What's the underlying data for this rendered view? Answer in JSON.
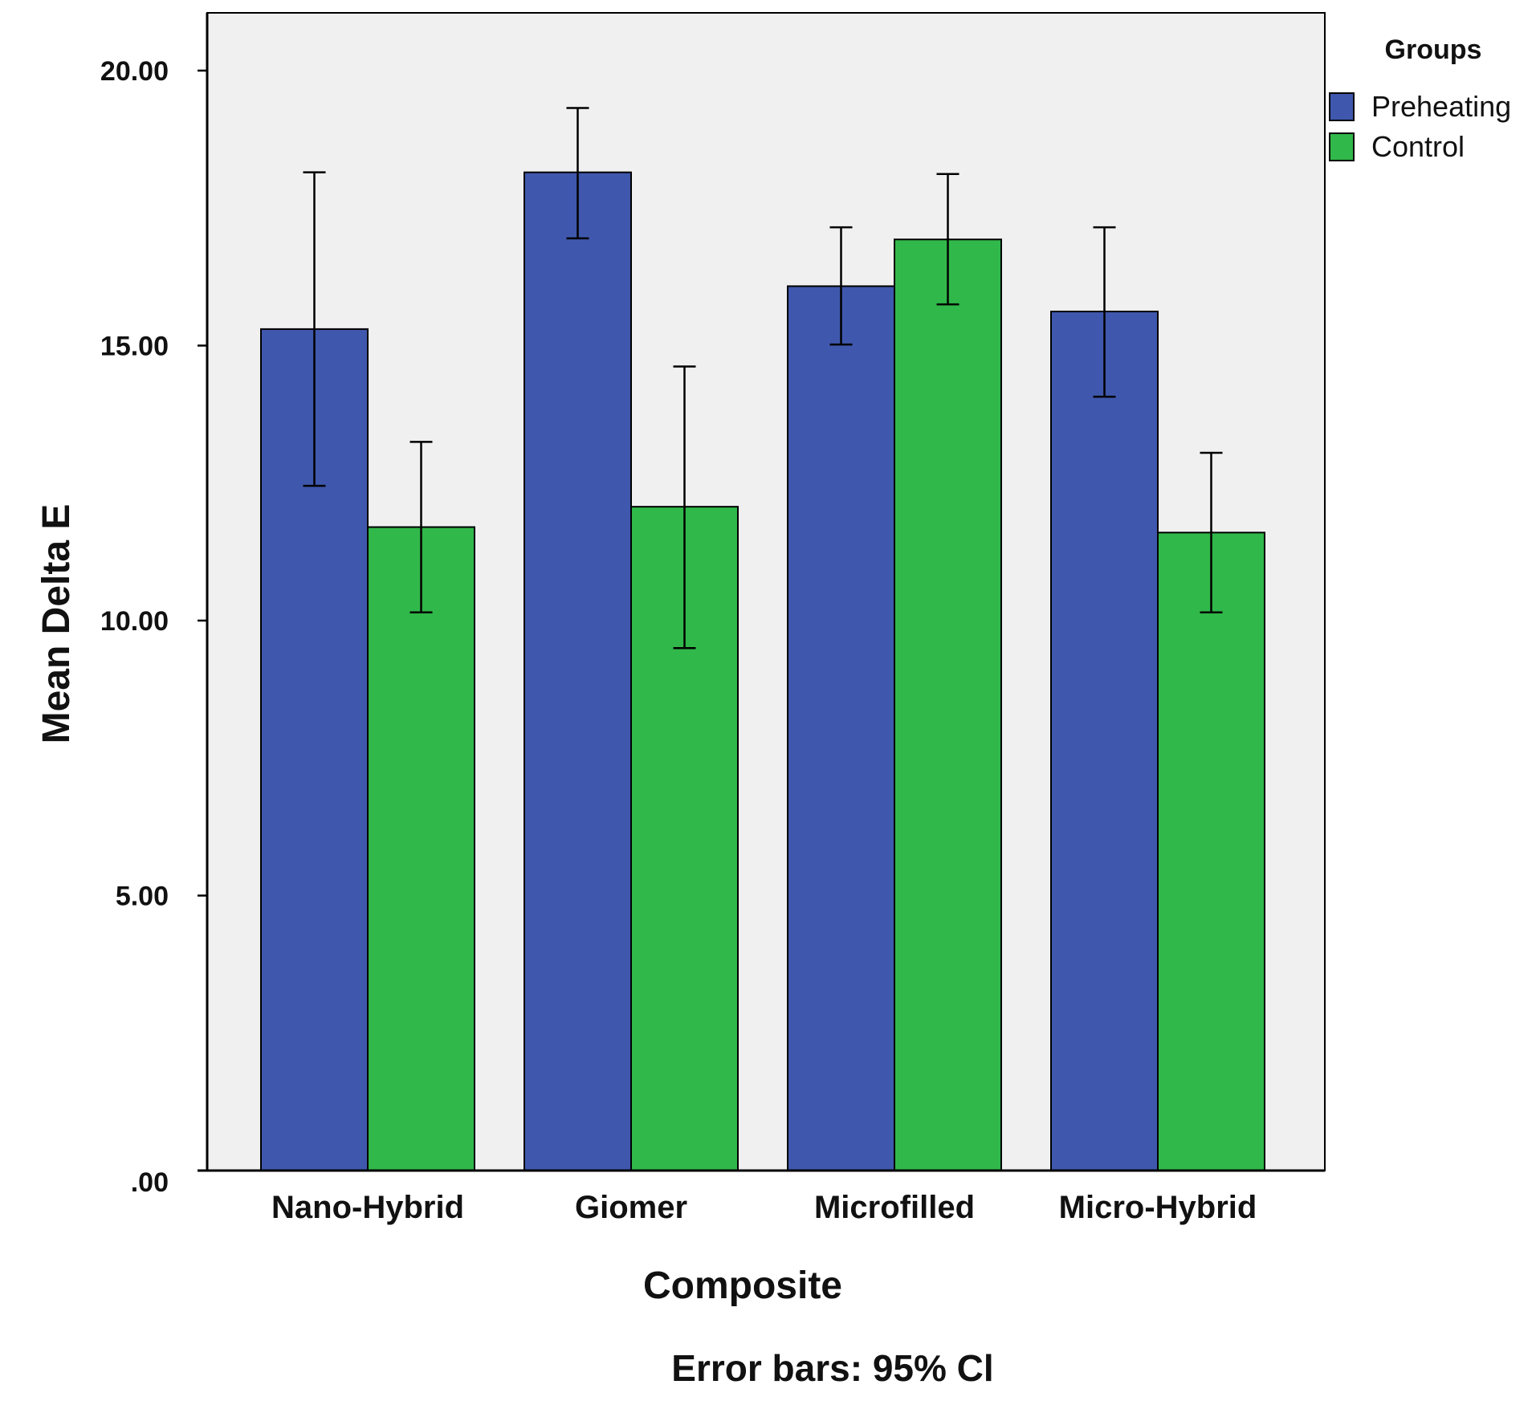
{
  "chart_data": {
    "type": "bar",
    "title": "",
    "xlabel": "Composite",
    "ylabel": "Mean Delta E",
    "categories": [
      "Nano-Hybrid",
      "Giomer",
      "Microfilled",
      "Micro-Hybrid"
    ],
    "series": [
      {
        "name": "Preheating",
        "color": "#3f58ad",
        "values": [
          15.3,
          18.15,
          16.08,
          15.62
        ],
        "ci_low": [
          12.45,
          16.95,
          15.02,
          14.07
        ],
        "ci_high": [
          18.15,
          19.32,
          17.15,
          17.15
        ]
      },
      {
        "name": "Control",
        "color": "#31b84a",
        "values": [
          11.7,
          12.07,
          16.93,
          11.6
        ],
        "ci_low": [
          10.15,
          9.5,
          15.75,
          10.15
        ],
        "ci_high": [
          13.25,
          14.62,
          18.12,
          13.05
        ]
      }
    ],
    "y_ticks": [
      0,
      5,
      10,
      15,
      20
    ],
    "y_tick_labels": [
      ".00",
      "5.00",
      "10.00",
      "15.00",
      "20.00"
    ],
    "ylim": [
      0,
      21.05
    ],
    "grid": false,
    "legend": {
      "title": "Groups",
      "placement": "top-right"
    },
    "note": "Error bars: 95% Cl"
  }
}
